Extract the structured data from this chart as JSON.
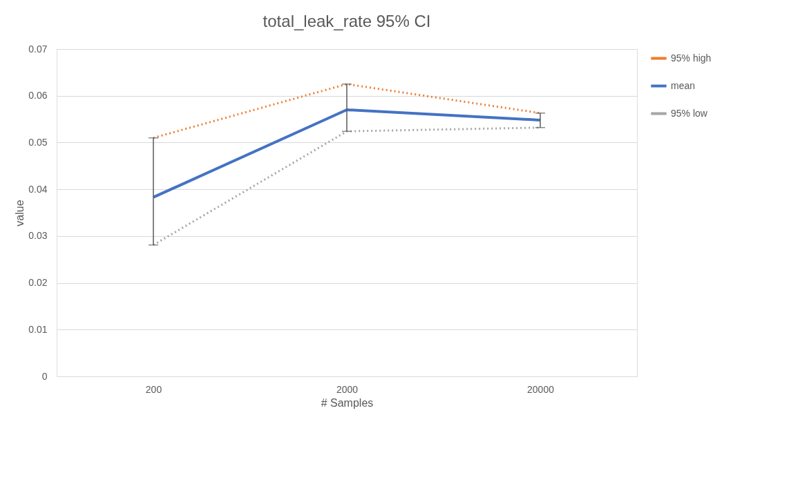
{
  "chart_data": {
    "type": "line",
    "title": "total_leak_rate 95% CI",
    "xlabel": "# Samples",
    "ylabel": "value",
    "categories": [
      "200",
      "2000",
      "20000"
    ],
    "ylim": [
      0,
      0.07
    ],
    "yticks": [
      {
        "value": 0,
        "label": "0"
      },
      0.01,
      0.02,
      0.03,
      0.04,
      0.05,
      0.06,
      0.07
    ],
    "grid": "y",
    "legend": "right",
    "marker": "none",
    "series": [
      {
        "name": "95% high",
        "color": "#ed7d31",
        "line_style": "dotted",
        "values": [
          0.051,
          0.0625,
          0.0563
        ]
      },
      {
        "name": "mean",
        "color": "#4472c4",
        "line_style": "solid",
        "values": [
          0.0383,
          0.057,
          0.0548
        ],
        "errors": [
          [
            0.0281,
            0.051
          ],
          [
            0.0524,
            0.0625
          ],
          [
            0.0532,
            0.0563
          ]
        ]
      },
      {
        "name": "95% low",
        "color": "#a5a5a5",
        "line_style": "dotted",
        "values": [
          0.0281,
          0.0524,
          0.0532
        ]
      }
    ]
  }
}
